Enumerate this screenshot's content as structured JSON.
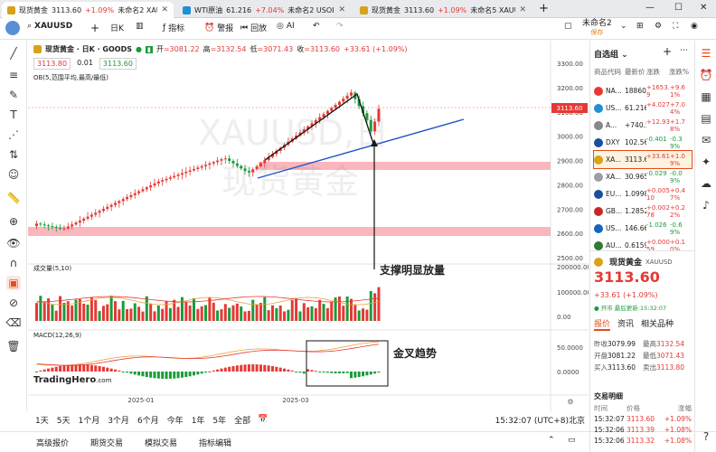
{
  "browser_tabs": [
    {
      "title": "现货黄金",
      "price": "3113.60",
      "change": "+1.09%",
      "name": "未命名2 XAUUSD",
      "color": "#d9a21b",
      "active": true
    },
    {
      "title": "WTI原油",
      "price": "61.216",
      "change": "+7.04%",
      "name": "未命名2 USOIL",
      "color": "#1f8fd6",
      "active": false
    },
    {
      "title": "现货黄金",
      "price": "3113.60",
      "change": "+1.09%",
      "name": "未命名5 XAUUSD",
      "color": "#d9a21b",
      "active": false
    }
  ],
  "toolbar": {
    "symbol": "XAUUSD",
    "interval": "日K",
    "indicators": "指标",
    "alert": "警报",
    "replay": "回放",
    "ai": "AI",
    "layout_name": "未命名2",
    "layout_status": "保存"
  },
  "legend": {
    "name": "现货黄金 · 日K · GOODS",
    "open_label": "开",
    "open": "=3081.22",
    "high_label": "高",
    "high": "=3132.54",
    "low_label": "低",
    "low": "=3071.43",
    "close_label": "收",
    "close": "=3113.60",
    "change": "+33.61 (+1.09%)",
    "bid": "3113.80",
    "spread": "0.01",
    "ask": "3113.60",
    "ob": "OB(5,范围平均,最高/最低)"
  },
  "watermark": {
    "line1": "XAUUSD,日",
    "line2": "现货黄金"
  },
  "price_axis": [
    "3300.00",
    "3200.00",
    "3100.00",
    "3000.00",
    "2900.00",
    "2800.00",
    "2700.00",
    "2600.00",
    "2500.00"
  ],
  "current_price": "3113.60",
  "volume_label": "成交量(5,10)",
  "volume_axis": [
    "200000.00",
    "100000.00",
    "0.00"
  ],
  "macd_label": "MACD(12,26,9)",
  "macd_axis": [
    "50.0000",
    "0.0000"
  ],
  "date_axis": [
    "2025-01",
    "2025-03"
  ],
  "brand": "TradingHero",
  "brand_suffix": ".com",
  "annotations": {
    "support": "支撑明显放量",
    "golden_cross": "金叉趋势"
  },
  "timeframes": [
    "1天",
    "5天",
    "1个月",
    "3个月",
    "6个月",
    "今年",
    "1年",
    "5年",
    "全部"
  ],
  "clock": "15:32:07 (UTC+8)北京",
  "bottom_nav": [
    "高级报价",
    "期货交易",
    "模拟交易",
    "指标编辑"
  ],
  "watchlist": {
    "title": "自选组",
    "headers": [
      "商品代码",
      "最新价",
      "涨跌",
      "涨跌%"
    ],
    "rows": [
      {
        "code": "NA...",
        "last": "18860.8",
        "chg": "+1653.9",
        "pct": "+9.61%",
        "icon": "#e53935",
        "dir": "up"
      },
      {
        "code": "US...",
        "last": "61.216",
        "chg": "+4.027",
        "pct": "+7.04%",
        "icon": "#1f8fd6",
        "dir": "up"
      },
      {
        "code": "A...",
        "last": "+740.52",
        "chg": "+12.93",
        "pct": "+1.78%",
        "icon": "#888888",
        "dir": "up"
      },
      {
        "code": "DXY",
        "last": "102.564",
        "chg": "-0.401",
        "pct": "-0.39%",
        "icon": "#1a4fa0",
        "dir": "down"
      },
      {
        "code": "XA...",
        "last": "3113.60",
        "chg": "+33.61",
        "pct": "+1.09%",
        "icon": "#d9a21b",
        "dir": "up",
        "selected": true
      },
      {
        "code": "XA...",
        "last": "30.965",
        "chg": "-0.029",
        "pct": "-0.09%",
        "icon": "#9aa0a6",
        "dir": "down"
      },
      {
        "code": "EU...",
        "last": "1.09987",
        "chg": "+0.00510",
        "pct": "+0.47%",
        "icon": "#1a4fa0",
        "dir": "up"
      },
      {
        "code": "GB...",
        "last": "1.28527",
        "chg": "+0.00278",
        "pct": "+0.22%",
        "icon": "#c62828",
        "dir": "up"
      },
      {
        "code": "US...",
        "last": "146.669",
        "chg": "-1.026",
        "pct": "-0.69%",
        "icon": "#1565c0",
        "dir": "down"
      },
      {
        "code": "AU...",
        "last": "0.61597",
        "chg": "+0.00059",
        "pct": "+0.10%",
        "icon": "#2e7d32",
        "dir": "up"
      }
    ]
  },
  "detail": {
    "name": "现货黄金",
    "symbol": "XAUUSD",
    "price": "3113.60",
    "change": "+33.61 (+1.09%)",
    "status": "● 开市 最后更新:15:32:07",
    "tabs": [
      "报价",
      "资讯",
      "相关品种"
    ],
    "stats": [
      {
        "l1": "昨收",
        "v1": "3079.99",
        "l2": "最高",
        "v2": "3132.54"
      },
      {
        "l1": "开盘",
        "v1": "3081.22",
        "l2": "最低",
        "v2": "3071.43"
      },
      {
        "l1": "买入",
        "v1": "3113.60",
        "l2": "卖出",
        "v2": "3113.80"
      }
    ],
    "trades_title": "交易明细",
    "trades_headers": [
      "时间",
      "价格",
      "涨幅"
    ],
    "trades": [
      {
        "time": "15:32:07",
        "price": "3113.60",
        "pct": "+1.09%"
      },
      {
        "time": "15:32:06",
        "price": "3113.39",
        "pct": "+1.08%"
      },
      {
        "time": "15:32:06",
        "price": "3113.32",
        "pct": "+1.08%"
      }
    ]
  }
}
